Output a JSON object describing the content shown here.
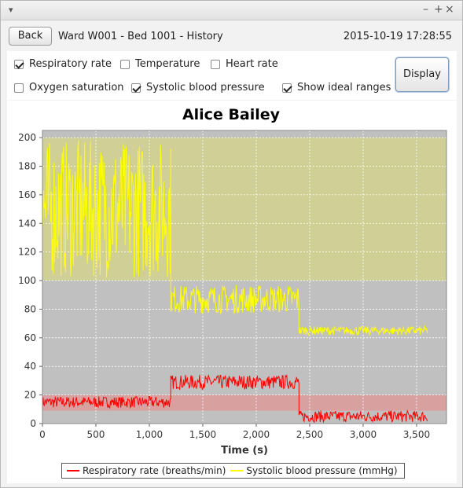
{
  "window": {
    "controls": [
      "–",
      "+",
      "×"
    ]
  },
  "header": {
    "back_label": "Back",
    "ward_text": "Ward  W001  - Bed 1001  - History",
    "datetime": "2015-10-19 17:28:55"
  },
  "options": {
    "respiratory": {
      "label": "Respiratory rate",
      "checked": true
    },
    "temperature": {
      "label": "Temperature",
      "checked": false
    },
    "heart": {
      "label": "Heart rate",
      "checked": false
    },
    "oxygen": {
      "label": "Oxygen saturation",
      "checked": false
    },
    "systolic": {
      "label": "Systolic blood pressure",
      "checked": true
    },
    "ideal": {
      "label": "Show ideal ranges",
      "checked": true
    },
    "display_label": "Display"
  },
  "chart_data": {
    "type": "line",
    "title": "Alice Bailey",
    "xlabel": "Time (s)",
    "ylabel": "",
    "xlim": [
      0,
      3780
    ],
    "ylim": [
      0,
      205
    ],
    "x_ticks": [
      "0",
      "500",
      "1,000",
      "1,500",
      "2,000",
      "2,500",
      "3,000",
      "3,500"
    ],
    "x_tick_values": [
      0,
      500,
      1000,
      1500,
      2000,
      2500,
      3000,
      3500
    ],
    "y_ticks": [
      "0",
      "20",
      "40",
      "60",
      "80",
      "100",
      "120",
      "140",
      "160",
      "180",
      "200"
    ],
    "y_tick_values": [
      0,
      20,
      40,
      60,
      80,
      100,
      120,
      140,
      160,
      180,
      200
    ],
    "grid": true,
    "background": "#c0c0c0",
    "ideal_ranges": [
      {
        "series": "Systolic blood pressure (mmHg)",
        "min": 100,
        "max": 200,
        "color": "#cfcf96"
      },
      {
        "series": "Respiratory rate (breaths/min)",
        "min": 9,
        "max": 20,
        "color": "#d9a0a0"
      }
    ],
    "series": [
      {
        "name": "Respiratory rate (breaths/min)",
        "color": "#ff0000",
        "segments": [
          {
            "x_start": 0,
            "x_end": 1200,
            "mean": 15,
            "spread": 4
          },
          {
            "x_start": 1200,
            "x_end": 2400,
            "mean": 29,
            "spread": 5
          },
          {
            "x_start": 2400,
            "x_end": 3600,
            "mean": 5,
            "spread": 4
          }
        ]
      },
      {
        "name": "Systolic blood pressure (mmHg)",
        "color": "#ffff00",
        "segments": [
          {
            "x_start": 0,
            "x_end": 1200,
            "mean": 150,
            "spread": 48
          },
          {
            "x_start": 1200,
            "x_end": 2400,
            "mean": 87,
            "spread": 10
          },
          {
            "x_start": 2400,
            "x_end": 3600,
            "mean": 65,
            "spread": 3
          }
        ]
      }
    ],
    "legend_position": "bottom"
  }
}
